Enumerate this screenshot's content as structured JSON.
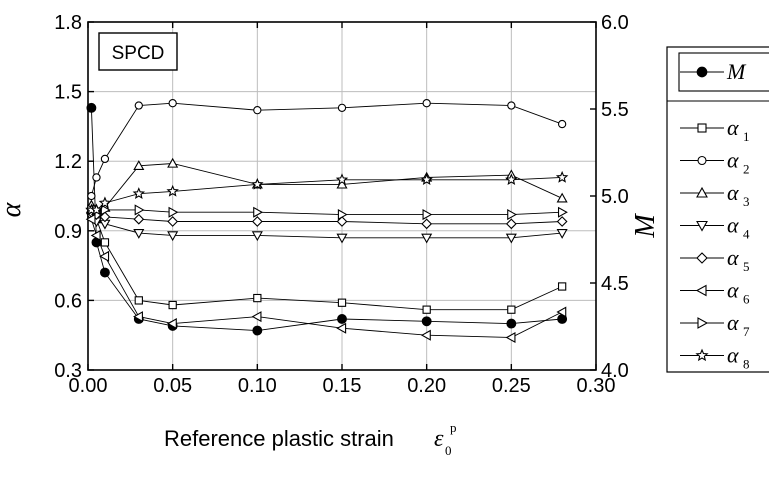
{
  "chart_data": {
    "type": "line",
    "title": "",
    "annotation": "SPCD",
    "xlabel": "Reference plastic strain",
    "xlabel_symbol": "ε",
    "xlabel_subscript": "0",
    "xlabel_superscript": "p",
    "ylabel_left": "α",
    "ylabel_right": "M",
    "xlim": [
      0.0,
      0.3
    ],
    "ylim_left": [
      0.3,
      1.8
    ],
    "ylim_right": [
      4.0,
      6.0
    ],
    "x_ticks": [
      "0.00",
      "0.05",
      "0.10",
      "0.15",
      "0.20",
      "0.25",
      "0.30"
    ],
    "y_left_ticks": [
      "0.3",
      "0.6",
      "0.9",
      "1.2",
      "1.5",
      "1.8"
    ],
    "y_right_ticks": [
      "4.0",
      "4.5",
      "5.0",
      "5.5",
      "6.0"
    ],
    "grid": true,
    "legend_position": "right-outside",
    "series": [
      {
        "name": "M",
        "axis": "left",
        "marker": "filled-circle",
        "x": [
          0.002,
          0.005,
          0.01,
          0.03,
          0.05,
          0.1,
          0.15,
          0.2,
          0.25,
          0.28
        ],
        "y": [
          1.43,
          0.85,
          0.72,
          0.52,
          0.49,
          0.47,
          0.52,
          0.51,
          0.5,
          0.52
        ]
      },
      {
        "name": "α",
        "sub": "1",
        "axis": "left",
        "marker": "square",
        "x": [
          0.002,
          0.005,
          0.01,
          0.03,
          0.05,
          0.1,
          0.15,
          0.2,
          0.25,
          0.28
        ],
        "y": [
          0.97,
          0.95,
          0.85,
          0.6,
          0.58,
          0.61,
          0.59,
          0.56,
          0.56,
          0.66
        ]
      },
      {
        "name": "α",
        "sub": "2",
        "axis": "left",
        "marker": "circle",
        "x": [
          0.002,
          0.005,
          0.01,
          0.03,
          0.05,
          0.1,
          0.15,
          0.2,
          0.25,
          0.28
        ],
        "y": [
          1.05,
          1.13,
          1.21,
          1.44,
          1.45,
          1.42,
          1.43,
          1.45,
          1.44,
          1.36
        ]
      },
      {
        "name": "α",
        "sub": "3",
        "axis": "left",
        "marker": "triangle-up",
        "x": [
          0.002,
          0.005,
          0.01,
          0.03,
          0.05,
          0.1,
          0.15,
          0.2,
          0.25,
          0.28
        ],
        "y": [
          1.01,
          0.99,
          1.0,
          1.18,
          1.19,
          1.1,
          1.1,
          1.13,
          1.14,
          1.04
        ]
      },
      {
        "name": "α",
        "sub": "4",
        "axis": "left",
        "marker": "triangle-down",
        "x": [
          0.002,
          0.005,
          0.01,
          0.03,
          0.05,
          0.1,
          0.15,
          0.2,
          0.25,
          0.28
        ],
        "y": [
          0.96,
          0.94,
          0.93,
          0.89,
          0.88,
          0.88,
          0.87,
          0.87,
          0.87,
          0.89
        ]
      },
      {
        "name": "α",
        "sub": "5",
        "axis": "left",
        "marker": "diamond",
        "x": [
          0.002,
          0.005,
          0.01,
          0.03,
          0.05,
          0.1,
          0.15,
          0.2,
          0.25,
          0.28
        ],
        "y": [
          0.98,
          0.97,
          0.96,
          0.95,
          0.94,
          0.94,
          0.94,
          0.93,
          0.93,
          0.94
        ]
      },
      {
        "name": "α",
        "sub": "6",
        "axis": "left",
        "marker": "triangle-left",
        "x": [
          0.002,
          0.005,
          0.01,
          0.03,
          0.05,
          0.1,
          0.15,
          0.2,
          0.25,
          0.28
        ],
        "y": [
          0.95,
          0.88,
          0.79,
          0.53,
          0.5,
          0.53,
          0.48,
          0.45,
          0.44,
          0.55
        ]
      },
      {
        "name": "α",
        "sub": "7",
        "axis": "left",
        "marker": "triangle-right",
        "x": [
          0.002,
          0.005,
          0.01,
          0.03,
          0.05,
          0.1,
          0.15,
          0.2,
          0.25,
          0.28
        ],
        "y": [
          0.99,
          0.99,
          0.99,
          0.99,
          0.98,
          0.98,
          0.97,
          0.97,
          0.97,
          0.98
        ]
      },
      {
        "name": "α",
        "sub": "8",
        "axis": "left",
        "marker": "star",
        "x": [
          0.002,
          0.005,
          0.01,
          0.03,
          0.05,
          0.1,
          0.15,
          0.2,
          0.25,
          0.28
        ],
        "y": [
          0.99,
          0.99,
          1.02,
          1.06,
          1.07,
          1.1,
          1.12,
          1.12,
          1.12,
          1.13
        ]
      }
    ]
  }
}
